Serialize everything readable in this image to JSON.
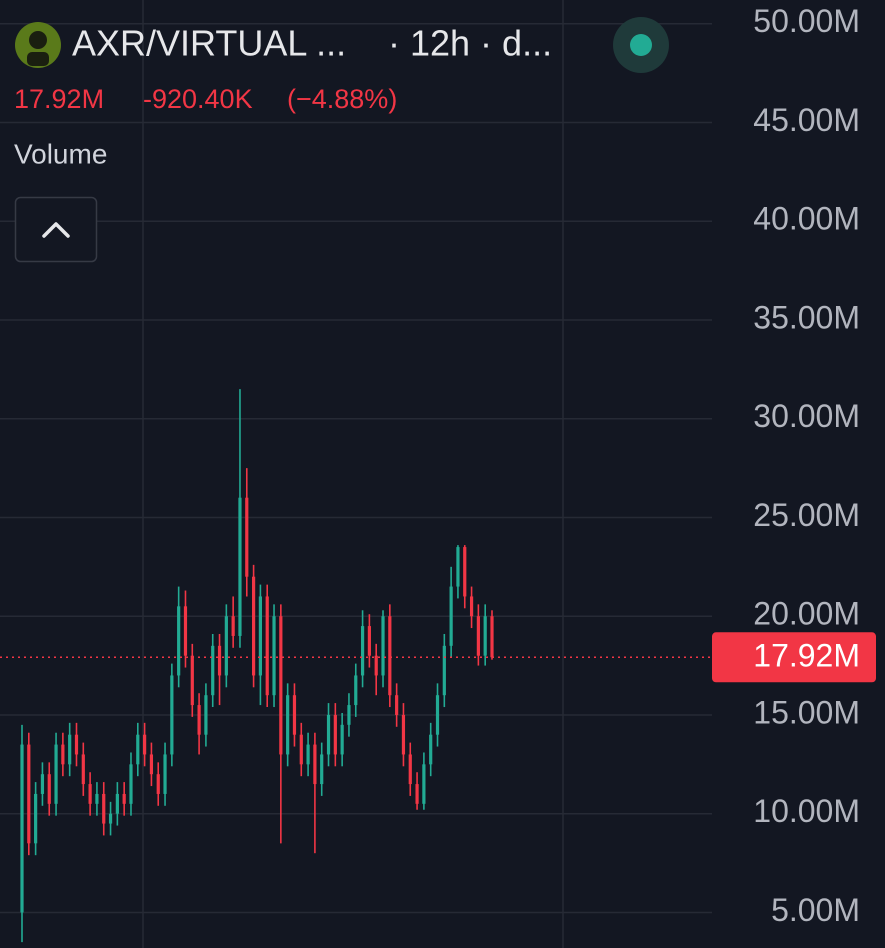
{
  "chart_data": {
    "type": "candlestick",
    "title": "AXR/VIRTUAL ...",
    "subtitle": "· 12h · d...",
    "indicator": "Volume",
    "last_price": {
      "value": 17.92,
      "label": "17.92M"
    },
    "change": {
      "value": -0.9204,
      "label": "-920.40K"
    },
    "change_percent": {
      "value": -4.88,
      "label": "(−4.88%)"
    },
    "up_color": "#22ab94",
    "down_color": "#f23645",
    "grid": true,
    "ylim": [
      3.2,
      51.2
    ],
    "yticks": [
      {
        "value": 5,
        "label": "5.00M"
      },
      {
        "value": 10,
        "label": "10.00M"
      },
      {
        "value": 15,
        "label": "15.00M"
      },
      {
        "value": 20,
        "label": "20.00M"
      },
      {
        "value": 25,
        "label": "25.00M"
      },
      {
        "value": 30,
        "label": "30.00M"
      },
      {
        "value": 35,
        "label": "35.00M"
      },
      {
        "value": 40,
        "label": "40.00M"
      },
      {
        "value": 45,
        "label": "45.00M"
      },
      {
        "value": 50,
        "label": "50.00M"
      }
    ],
    "open": [
      5,
      13.5,
      8.5,
      11,
      12,
      10.5,
      13.5,
      12.5,
      14,
      13,
      11.5,
      10.5,
      11,
      9.5,
      10,
      11,
      10.5,
      12.5,
      14,
      13,
      12,
      11,
      13,
      17,
      20.5,
      18,
      15.5,
      14,
      16,
      18.5,
      17,
      20,
      19,
      26,
      22,
      17,
      21,
      16,
      20,
      13,
      16,
      14,
      12.5,
      13.5,
      11.5,
      13,
      15,
      13,
      14.5,
      15.5,
      17,
      19.5,
      18,
      17,
      20,
      16,
      15,
      13,
      11.5,
      10.5,
      12.5,
      14,
      16,
      18.5,
      21.5,
      23.5,
      21,
      20,
      18,
      20
    ],
    "high": [
      14.5,
      14.1,
      11.6,
      12.6,
      12.6,
      14.1,
      14.1,
      14.6,
      14.6,
      13.6,
      12.1,
      11.6,
      11.6,
      10.6,
      11.6,
      11.6,
      13.1,
      14.6,
      14.6,
      13.6,
      12.6,
      13.6,
      17.6,
      21.5,
      21.3,
      18.6,
      16.1,
      16.6,
      19.1,
      19.1,
      20.6,
      21,
      31.5,
      27.5,
      22.6,
      21.6,
      21.6,
      20.6,
      20.6,
      16.6,
      16.6,
      14.6,
      14.1,
      14.1,
      13.6,
      15.6,
      15.6,
      15.1,
      16.1,
      17.6,
      20.3,
      20.1,
      18.6,
      20.3,
      20.6,
      16.6,
      15.6,
      13.6,
      12.1,
      13.1,
      14.6,
      16.6,
      19.1,
      22.5,
      23.6,
      23.6,
      21.5,
      20.6,
      20.6,
      20.3
    ],
    "low": [
      3.5,
      7.9,
      7.9,
      10.4,
      9.9,
      9.9,
      11.9,
      11.9,
      12.4,
      10.9,
      9.9,
      9.9,
      8.9,
      8.9,
      9.4,
      9.9,
      9.9,
      11.9,
      12.4,
      11.4,
      10.4,
      10.4,
      12.4,
      16.4,
      17.4,
      14.9,
      13,
      13.4,
      15.4,
      15.5,
      16.4,
      18.4,
      18.4,
      21,
      16.4,
      15.5,
      15.4,
      15.4,
      8.5,
      12.4,
      13.4,
      11.9,
      11.9,
      8,
      10.9,
      12.4,
      12.4,
      12.4,
      13.9,
      14.9,
      16.4,
      17.4,
      16,
      16.4,
      15.4,
      14.4,
      12.4,
      10.9,
      10.2,
      10.2,
      11.9,
      13.4,
      15.4,
      17.9,
      20.9,
      20.4,
      19.4,
      17.5,
      17.5,
      17.8
    ],
    "close": [
      13.5,
      8.5,
      11,
      12,
      10.5,
      13.5,
      12.5,
      14,
      13,
      11.5,
      10.5,
      11,
      9.5,
      10,
      11,
      10.5,
      12.5,
      14,
      13,
      12,
      11,
      13,
      17,
      20.5,
      18,
      15.5,
      14,
      16,
      18.5,
      17,
      20,
      19,
      26,
      22,
      17,
      21,
      16,
      20,
      13,
      16,
      14,
      12.5,
      13.5,
      11.5,
      13,
      15,
      13,
      14.5,
      15.5,
      17,
      19.5,
      18,
      17,
      20,
      16,
      15,
      13,
      11.5,
      10.5,
      12.5,
      14,
      16,
      18.5,
      21.5,
      23.5,
      21,
      20,
      18,
      20,
      17.92
    ]
  }
}
